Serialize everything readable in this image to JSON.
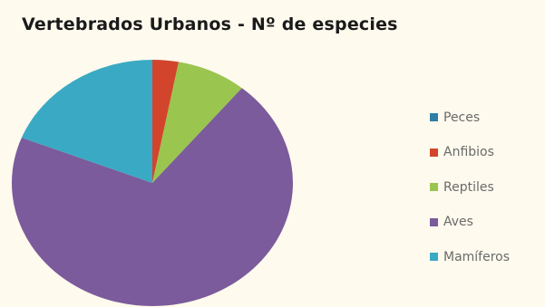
{
  "chart_data": {
    "type": "pie",
    "title": "Vertebrados Urbanos  - Nº de especies",
    "categories": [
      "Peces",
      "Anfibios",
      "Reptiles",
      "Aves",
      "Mamíferos"
    ],
    "values": [
      0,
      3,
      8,
      70,
      19
    ],
    "colors": [
      "#2e7fa8",
      "#d2452c",
      "#9ac54f",
      "#7b5b9b",
      "#3aa9c4"
    ],
    "legend_position": "right"
  }
}
